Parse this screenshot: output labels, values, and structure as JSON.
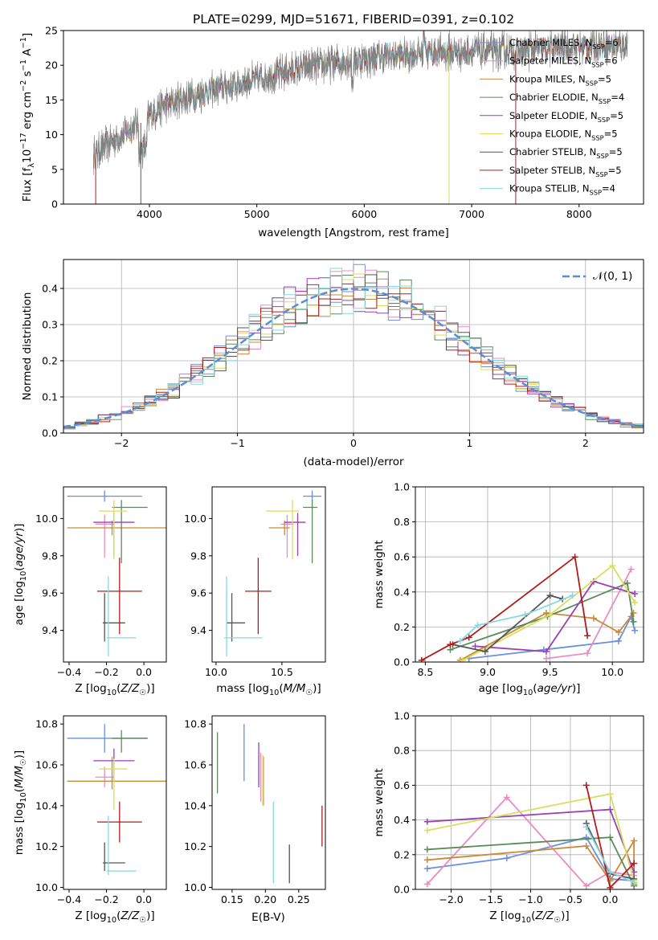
{
  "figure": {
    "title": "PLATE=0299, MJD=51671, FIBERID=0391, z=0.102"
  },
  "chart_data": [
    {
      "id": "spectrum",
      "type": "line",
      "title": "PLATE=0299, MJD=51671, FIBERID=0391, z=0.102",
      "xlabel": "wavelength [Angstrom, rest frame]",
      "ylabel": "Flux [f_λ10^-17 erg cm^-2 s^-1 A^-1]",
      "xlim": [
        3200,
        8600
      ],
      "ylim": [
        0,
        25
      ],
      "xticks": [
        4000,
        5000,
        6000,
        7000,
        8000
      ],
      "yticks": [
        0,
        5,
        10,
        15,
        20,
        25
      ],
      "grid": false,
      "legend_position": "top-right",
      "data_color": "#808080",
      "continuum": {
        "x": [
          3480,
          3600,
          3800,
          3950,
          4100,
          4300,
          4600,
          5000,
          5400,
          5800,
          6200,
          6600,
          7000,
          7400,
          7800,
          8200,
          8450
        ],
        "y": [
          7.0,
          8.5,
          10.5,
          12.0,
          14.0,
          15.0,
          16.5,
          18.0,
          19.5,
          20.5,
          21.3,
          21.8,
          22.0,
          22.0,
          22.5,
          22.8,
          22.8
        ]
      },
      "dropouts": [
        {
          "x": 3500,
          "y_low": 0,
          "series": "Salpeter STELIB"
        },
        {
          "x": 3920,
          "y_low": 0,
          "series": "Chabrier STELIB"
        },
        {
          "x": 6790,
          "y_low": 0,
          "series": "Kroupa ELODIE"
        },
        {
          "x": 7410,
          "y_low": 0,
          "series": "Salpeter STELIB"
        }
      ],
      "series": [
        {
          "name": "Chabrier MILES",
          "label_sub": "SSP",
          "n": "6",
          "color": "#6a8fdc"
        },
        {
          "name": "Salpeter MILES",
          "label_sub": "SSP",
          "n": "6",
          "color": "#e98cbf"
        },
        {
          "name": "Kroupa MILES",
          "label_sub": "SSP",
          "n": "5",
          "color": "#c98a3a"
        },
        {
          "name": "Chabrier ELODIE",
          "label_sub": "SSP",
          "n": "4",
          "color": "#5b8a5b"
        },
        {
          "name": "Salpeter ELODIE",
          "label_sub": "SSP",
          "n": "5",
          "color": "#9b3fb5"
        },
        {
          "name": "Kroupa ELODIE",
          "label_sub": "SSP",
          "n": "5",
          "color": "#d6e05a"
        },
        {
          "name": "Chabrier STELIB",
          "label_sub": "SSP",
          "n": "5",
          "color": "#555555"
        },
        {
          "name": "Salpeter STELIB",
          "label_sub": "SSP",
          "n": "5",
          "color": "#b31b1b"
        },
        {
          "name": "Kroupa STELIB",
          "label_sub": "SSP",
          "n": "4",
          "color": "#88d8e0"
        }
      ]
    },
    {
      "id": "residuals",
      "type": "histogram",
      "xlabel": "(data-model)/error",
      "ylabel": "Normed distribution",
      "xlim": [
        -2.5,
        2.5
      ],
      "ylim": [
        0,
        0.48
      ],
      "xticks": [
        -2,
        -1,
        0,
        1,
        2
      ],
      "xtick_labels": [
        "−2",
        "−1",
        "0",
        "1",
        "2"
      ],
      "yticks": [
        0.0,
        0.1,
        0.2,
        0.3,
        0.4
      ],
      "yticklabels": [
        "0.0",
        "0.1",
        "0.2",
        "0.3",
        "0.4"
      ],
      "grid": true,
      "legend_position": "top-right",
      "reference": {
        "name": "𝒩(0, 1)",
        "color": "#5b8dd6",
        "style": "dashed",
        "mu": 0,
        "sigma": 1
      },
      "bin_width": 0.1,
      "bin_start": -2.5,
      "hist_colors": [
        "#6a8fdc",
        "#e98cbf",
        "#c98a3a",
        "#5b8a5b",
        "#9b3fb5",
        "#d6e05a",
        "#555555",
        "#b31b1b",
        "#88d8e0"
      ]
    },
    {
      "id": "age_vs_Z",
      "type": "errorbar",
      "xlabel": "Z [log10(Z/Z☉)]",
      "ylabel": "age [log10(age/yr)]",
      "xlim": [
        -0.43,
        0.12
      ],
      "ylim": [
        9.23,
        10.17
      ],
      "xticks": [
        -0.4,
        -0.2,
        0.0
      ],
      "xtick_labels": [
        "−0.4",
        "−0.2",
        "0.0"
      ],
      "yticks": [
        9.4,
        9.6,
        9.8,
        10.0
      ],
      "ytick_labels": [
        "9.4",
        "9.6",
        "9.8",
        "10.0"
      ],
      "grid": false,
      "points": [
        {
          "c": "#6a8fdc",
          "x": -0.21,
          "xerr": [
            0.2,
            0.2
          ],
          "y": 10.12,
          "yerr": [
            0.03,
            0.03
          ]
        },
        {
          "c": "#e98cbf",
          "x": -0.21,
          "xerr": [
            0.05,
            0.05
          ],
          "y": 9.97,
          "yerr": [
            0.18,
            0.05
          ]
        },
        {
          "c": "#c98a3a",
          "x": -0.17,
          "xerr": [
            0.24,
            0.34
          ],
          "y": 9.95,
          "yerr": [
            0.04,
            0.04
          ]
        },
        {
          "c": "#5b8a5b",
          "x": -0.12,
          "xerr": [
            0.05,
            0.14
          ],
          "y": 10.06,
          "yerr": [
            0.3,
            0.04
          ]
        },
        {
          "c": "#9b3fb5",
          "x": -0.16,
          "xerr": [
            0.11,
            0.11
          ],
          "y": 9.98,
          "yerr": [
            0.18,
            0.05
          ]
        },
        {
          "c": "#d6e05a",
          "x": -0.16,
          "xerr": [
            0.08,
            0.07
          ],
          "y": 10.04,
          "yerr": [
            0.26,
            0.06
          ]
        },
        {
          "c": "#555555",
          "x": -0.21,
          "xerr": [
            0.01,
            0.11
          ],
          "y": 9.44,
          "yerr": [
            0.1,
            0.16
          ]
        },
        {
          "c": "#b31b1b",
          "x": -0.13,
          "xerr": [
            0.12,
            0.12
          ],
          "y": 9.61,
          "yerr": [
            0.23,
            0.18
          ]
        },
        {
          "c": "#88d8e0",
          "x": -0.19,
          "xerr": [
            0.01,
            0.15
          ],
          "y": 9.36,
          "yerr": [
            0.1,
            0.33
          ]
        }
      ]
    },
    {
      "id": "age_vs_mass",
      "type": "errorbar",
      "xlabel": "mass [log10(M/M☉)]",
      "xlim": [
        9.97,
        10.83
      ],
      "ylim": [
        9.23,
        10.17
      ],
      "xticks": [
        10.0,
        10.5
      ],
      "xtick_labels": [
        "10.0",
        "10.5"
      ],
      "yticks": [
        9.4,
        9.6,
        9.8,
        10.0
      ],
      "ytick_labels": [
        "9.4",
        "9.6",
        "9.8",
        "10.0"
      ],
      "grid": false,
      "points": [
        {
          "c": "#6a8fdc",
          "x": 10.73,
          "xerr": [
            0.07,
            0.07
          ],
          "y": 10.12,
          "yerr": [
            0.03,
            0.03
          ]
        },
        {
          "c": "#e98cbf",
          "x": 10.54,
          "xerr": [
            0.05,
            0.05
          ],
          "y": 9.97,
          "yerr": [
            0.18,
            0.05
          ]
        },
        {
          "c": "#c98a3a",
          "x": 10.52,
          "xerr": [
            0.12,
            0.04
          ],
          "y": 9.95,
          "yerr": [
            0.04,
            0.04
          ]
        },
        {
          "c": "#5b8a5b",
          "x": 10.73,
          "xerr": [
            0.07,
            0.04
          ],
          "y": 10.06,
          "yerr": [
            0.3,
            0.04
          ]
        },
        {
          "c": "#9b3fb5",
          "x": 10.62,
          "xerr": [
            0.1,
            0.06
          ],
          "y": 9.98,
          "yerr": [
            0.18,
            0.05
          ]
        },
        {
          "c": "#d6e05a",
          "x": 10.58,
          "xerr": [
            0.2,
            0.05
          ],
          "y": 10.04,
          "yerr": [
            0.26,
            0.06
          ]
        },
        {
          "c": "#555555",
          "x": 10.12,
          "xerr": [
            0.04,
            0.1
          ],
          "y": 9.44,
          "yerr": [
            0.1,
            0.16
          ]
        },
        {
          "c": "#b31b1b",
          "x": 10.32,
          "xerr": [
            0.1,
            0.1
          ],
          "y": 9.61,
          "yerr": [
            0.23,
            0.18
          ]
        },
        {
          "c": "#88d8e0",
          "x": 10.08,
          "xerr": [
            0.02,
            0.27
          ],
          "y": 9.36,
          "yerr": [
            0.1,
            0.33
          ]
        }
      ]
    },
    {
      "id": "massweight_vs_age",
      "type": "line",
      "xlabel": "age [log10(age/yr)]",
      "ylabel": "mass weight",
      "xlim": [
        8.42,
        10.25
      ],
      "ylim": [
        0,
        1.0
      ],
      "xticks": [
        8.5,
        9.0,
        9.5,
        10.0
      ],
      "xtick_labels": [
        "8.5",
        "9.0",
        "9.5",
        "10.0"
      ],
      "yticks": [
        0.0,
        0.2,
        0.4,
        0.6,
        0.8,
        1.0
      ],
      "ytick_labels": [
        "0.0",
        "0.2",
        "0.4",
        "0.6",
        "0.8",
        "1.0"
      ],
      "grid": true,
      "series": [
        {
          "c": "#6a8fdc",
          "x": [
            8.85,
            9.45,
            10.05,
            10.15,
            10.18
          ],
          "y": [
            0.02,
            0.07,
            0.12,
            0.26,
            0.18
          ]
        },
        {
          "c": "#e98cbf",
          "x": [
            9.47,
            9.8,
            10.15
          ],
          "y": [
            0.02,
            0.05,
            0.53
          ]
        },
        {
          "c": "#c98a3a",
          "x": [
            8.78,
            9.47,
            9.85,
            10.05,
            10.17
          ],
          "y": [
            0.01,
            0.28,
            0.25,
            0.17,
            0.28
          ]
        },
        {
          "c": "#5b8a5b",
          "x": [
            8.7,
            9.48,
            10.12,
            10.17
          ],
          "y": [
            0.07,
            0.26,
            0.45,
            0.23
          ]
        },
        {
          "c": "#9b3fb5",
          "x": [
            8.9,
            9.47,
            9.85,
            10.18
          ],
          "y": [
            0.09,
            0.06,
            0.46,
            0.39
          ]
        },
        {
          "c": "#d6e05a",
          "x": [
            8.8,
            9.5,
            10.0,
            10.18
          ],
          "y": [
            0.01,
            0.27,
            0.55,
            0.34
          ]
        },
        {
          "c": "#555555",
          "x": [
            8.72,
            8.98,
            9.5,
            9.6
          ],
          "y": [
            0.1,
            0.06,
            0.38,
            0.36
          ]
        },
        {
          "c": "#b31b1b",
          "x": [
            8.47,
            8.7,
            8.85,
            9.7,
            9.8
          ],
          "y": [
            0.01,
            0.1,
            0.14,
            0.6,
            0.15
          ]
        },
        {
          "c": "#88d8e0",
          "x": [
            8.78,
            8.92,
            9.3,
            9.68
          ],
          "y": [
            0.12,
            0.21,
            0.27,
            0.38
          ]
        }
      ]
    },
    {
      "id": "mass_vs_Z",
      "type": "errorbar",
      "xlabel": "Z [log10(Z/Z☉)]",
      "ylabel": "mass [log10(M/M☉)]",
      "xlim": [
        -0.43,
        0.12
      ],
      "ylim": [
        9.99,
        10.84
      ],
      "xticks": [
        -0.4,
        -0.2,
        0.0
      ],
      "xtick_labels": [
        "−0.4",
        "−0.2",
        "0.0"
      ],
      "yticks": [
        10.0,
        10.2,
        10.4,
        10.6,
        10.8
      ],
      "ytick_labels": [
        "10.0",
        "10.2",
        "10.4",
        "10.6",
        "10.8"
      ],
      "grid": false,
      "points": [
        {
          "c": "#6a8fdc",
          "x": -0.21,
          "xerr": [
            0.2,
            0.23
          ],
          "y": 10.73,
          "yerr": [
            0.07,
            0.07
          ]
        },
        {
          "c": "#e98cbf",
          "x": -0.21,
          "xerr": [
            0.05,
            0.05
          ],
          "y": 10.54,
          "yerr": [
            0.05,
            0.05
          ]
        },
        {
          "c": "#c98a3a",
          "x": -0.17,
          "xerr": [
            0.24,
            0.34
          ],
          "y": 10.52,
          "yerr": [
            0.04,
            0.12
          ]
        },
        {
          "c": "#5b8a5b",
          "x": -0.12,
          "xerr": [
            0.05,
            0.14
          ],
          "y": 10.73,
          "yerr": [
            0.07,
            0.04
          ]
        },
        {
          "c": "#9b3fb5",
          "x": -0.16,
          "xerr": [
            0.11,
            0.11
          ],
          "y": 10.62,
          "yerr": [
            0.1,
            0.06
          ]
        },
        {
          "c": "#d6e05a",
          "x": -0.16,
          "xerr": [
            0.08,
            0.07
          ],
          "y": 10.58,
          "yerr": [
            0.2,
            0.05
          ]
        },
        {
          "c": "#555555",
          "x": -0.21,
          "xerr": [
            0.01,
            0.11
          ],
          "y": 10.12,
          "yerr": [
            0.04,
            0.1
          ]
        },
        {
          "c": "#b31b1b",
          "x": -0.13,
          "xerr": [
            0.12,
            0.12
          ],
          "y": 10.32,
          "yerr": [
            0.1,
            0.1
          ]
        },
        {
          "c": "#88d8e0",
          "x": -0.19,
          "xerr": [
            0.01,
            0.15
          ],
          "y": 10.08,
          "yerr": [
            0.02,
            0.27
          ]
        }
      ]
    },
    {
      "id": "mass_vs_EBV",
      "type": "errorbar",
      "xlabel": "E(B-V)",
      "xlim": [
        0.12,
        0.29
      ],
      "ylim": [
        9.99,
        10.84
      ],
      "xticks": [
        0.15,
        0.2,
        0.25
      ],
      "xtick_labels": [
        "0.15",
        "0.20",
        "0.25"
      ],
      "yticks": [
        10.0,
        10.2,
        10.4,
        10.6,
        10.8
      ],
      "ytick_labels": [
        "10.0",
        "10.2",
        "10.4",
        "10.6",
        "10.8"
      ],
      "grid": false,
      "points": [
        {
          "c": "#6a8fdc",
          "x": 0.168,
          "y": 10.66,
          "yerr": [
            0.14,
            0.14
          ]
        },
        {
          "c": "#e98cbf",
          "x": 0.193,
          "y": 10.54,
          "yerr": [
            0.12,
            0.12
          ]
        },
        {
          "c": "#c98a3a",
          "x": 0.197,
          "y": 10.52,
          "yerr": [
            0.12,
            0.12
          ]
        },
        {
          "c": "#5b8a5b",
          "x": 0.128,
          "y": 10.61,
          "yerr": [
            0.15,
            0.15
          ]
        },
        {
          "c": "#9b3fb5",
          "x": 0.19,
          "y": 10.6,
          "yerr": [
            0.11,
            0.11
          ]
        },
        {
          "c": "#d6e05a",
          "x": 0.196,
          "y": 10.55,
          "yerr": [
            0.15,
            0.1
          ]
        },
        {
          "c": "#555555",
          "x": 0.236,
          "y": 10.12,
          "yerr": [
            0.1,
            0.09
          ]
        },
        {
          "c": "#b31b1b",
          "x": 0.285,
          "y": 10.3,
          "yerr": [
            0.1,
            0.1
          ]
        },
        {
          "c": "#88d8e0",
          "x": 0.212,
          "y": 10.22,
          "yerr": [
            0.2,
            0.2
          ]
        }
      ]
    },
    {
      "id": "massweight_vs_Z",
      "type": "line",
      "xlabel": "Z [log10(Z/Z☉)]",
      "ylabel": "mass weight",
      "xlim": [
        -2.45,
        0.42
      ],
      "ylim": [
        0,
        1.0
      ],
      "xticks": [
        -2.0,
        -1.5,
        -1.0,
        -0.5,
        0.0
      ],
      "xtick_labels": [
        "−2.0",
        "−1.5",
        "−1.0",
        "−0.5",
        "0.0"
      ],
      "yticks": [
        0.0,
        0.2,
        0.4,
        0.6,
        0.8,
        1.0
      ],
      "ytick_labels": [
        "0.0",
        "0.2",
        "0.4",
        "0.6",
        "0.8",
        "1.0"
      ],
      "grid": true,
      "series": [
        {
          "c": "#6a8fdc",
          "x": [
            -2.3,
            -1.3,
            -0.3,
            0.0,
            0.3
          ],
          "y": [
            0.12,
            0.18,
            0.3,
            0.06,
            0.05
          ]
        },
        {
          "c": "#e98cbf",
          "x": [
            -2.3,
            -1.3,
            -0.3,
            0.0,
            0.3
          ],
          "y": [
            0.03,
            0.53,
            0.02,
            0.1,
            0.08
          ]
        },
        {
          "c": "#c98a3a",
          "x": [
            -2.3,
            -0.3,
            0.0,
            0.3,
            0.3
          ],
          "y": [
            0.17,
            0.25,
            0.05,
            0.28,
            0.03
          ]
        },
        {
          "c": "#5b8a5b",
          "x": [
            -2.3,
            0.0,
            0.3
          ],
          "y": [
            0.23,
            0.3,
            0.02
          ]
        },
        {
          "c": "#9b3fb5",
          "x": [
            -2.3,
            0.0,
            0.3
          ],
          "y": [
            0.39,
            0.46,
            0.1
          ]
        },
        {
          "c": "#d6e05a",
          "x": [
            -2.3,
            0.0,
            0.3
          ],
          "y": [
            0.34,
            0.55,
            0.05
          ]
        },
        {
          "c": "#555555",
          "x": [
            -0.3,
            0.0,
            0.3
          ],
          "y": [
            0.38,
            0.09,
            0.06
          ]
        },
        {
          "c": "#b31b1b",
          "x": [
            -0.3,
            0.0,
            0.3
          ],
          "y": [
            0.6,
            0.01,
            0.15
          ]
        },
        {
          "c": "#88d8e0",
          "x": [
            -0.3,
            0.0,
            0.3
          ],
          "y": [
            0.36,
            0.1,
            0.04
          ]
        }
      ]
    }
  ]
}
